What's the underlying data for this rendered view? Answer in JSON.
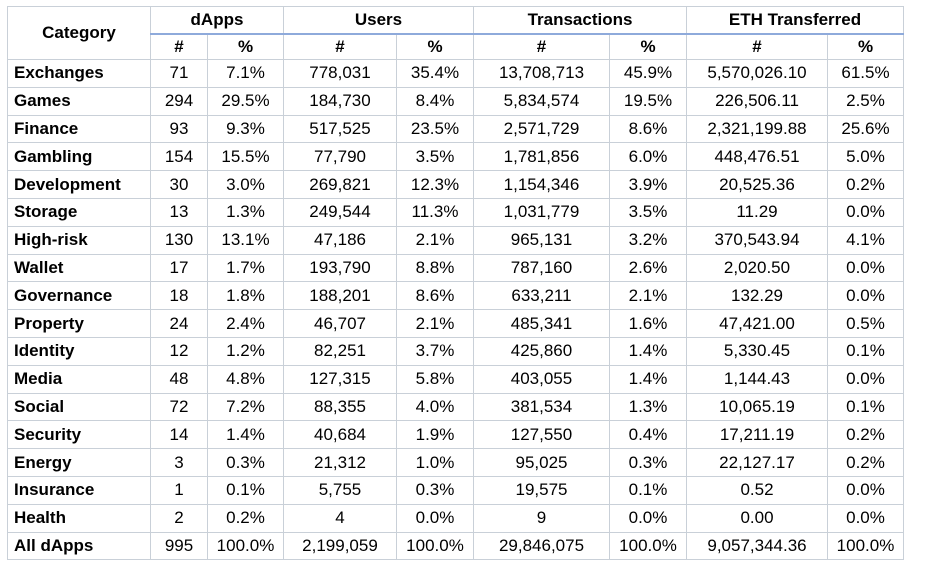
{
  "table": {
    "category_header": "Category",
    "groups": [
      "dApps",
      "Users",
      "Transactions",
      "ETH Transferred"
    ],
    "subheaders": [
      "#",
      "%",
      "#",
      "%",
      "#",
      "%",
      "#",
      "%"
    ],
    "rows": [
      [
        "Exchanges",
        "71",
        "7.1%",
        "778,031",
        "35.4%",
        "13,708,713",
        "45.9%",
        "5,570,026.10",
        "61.5%"
      ],
      [
        "Games",
        "294",
        "29.5%",
        "184,730",
        "8.4%",
        "5,834,574",
        "19.5%",
        "226,506.11",
        "2.5%"
      ],
      [
        "Finance",
        "93",
        "9.3%",
        "517,525",
        "23.5%",
        "2,571,729",
        "8.6%",
        "2,321,199.88",
        "25.6%"
      ],
      [
        "Gambling",
        "154",
        "15.5%",
        "77,790",
        "3.5%",
        "1,781,856",
        "6.0%",
        "448,476.51",
        "5.0%"
      ],
      [
        "Development",
        "30",
        "3.0%",
        "269,821",
        "12.3%",
        "1,154,346",
        "3.9%",
        "20,525.36",
        "0.2%"
      ],
      [
        "Storage",
        "13",
        "1.3%",
        "249,544",
        "11.3%",
        "1,031,779",
        "3.5%",
        "11.29",
        "0.0%"
      ],
      [
        "High-risk",
        "130",
        "13.1%",
        "47,186",
        "2.1%",
        "965,131",
        "3.2%",
        "370,543.94",
        "4.1%"
      ],
      [
        "Wallet",
        "17",
        "1.7%",
        "193,790",
        "8.8%",
        "787,160",
        "2.6%",
        "2,020.50",
        "0.0%"
      ],
      [
        "Governance",
        "18",
        "1.8%",
        "188,201",
        "8.6%",
        "633,211",
        "2.1%",
        "132.29",
        "0.0%"
      ],
      [
        "Property",
        "24",
        "2.4%",
        "46,707",
        "2.1%",
        "485,341",
        "1.6%",
        "47,421.00",
        "0.5%"
      ],
      [
        "Identity",
        "12",
        "1.2%",
        "82,251",
        "3.7%",
        "425,860",
        "1.4%",
        "5,330.45",
        "0.1%"
      ],
      [
        "Media",
        "48",
        "4.8%",
        "127,315",
        "5.8%",
        "403,055",
        "1.4%",
        "1,144.43",
        "0.0%"
      ],
      [
        "Social",
        "72",
        "7.2%",
        "88,355",
        "4.0%",
        "381,534",
        "1.3%",
        "10,065.19",
        "0.1%"
      ],
      [
        "Security",
        "14",
        "1.4%",
        "40,684",
        "1.9%",
        "127,550",
        "0.4%",
        "17,211.19",
        "0.2%"
      ],
      [
        "Energy",
        "3",
        "0.3%",
        "21,312",
        "1.0%",
        "95,025",
        "0.3%",
        "22,127.17",
        "0.2%"
      ],
      [
        "Insurance",
        "1",
        "0.1%",
        "5,755",
        "0.3%",
        "19,575",
        "0.1%",
        "0.52",
        "0.0%"
      ],
      [
        "Health",
        "2",
        "0.2%",
        "4",
        "0.0%",
        "9",
        "0.0%",
        "0.00",
        "0.0%"
      ],
      [
        "All dApps",
        "995",
        "100.0%",
        "2,199,059",
        "100.0%",
        "29,846,075",
        "100.0%",
        "9,057,344.36",
        "100.0%"
      ]
    ]
  }
}
